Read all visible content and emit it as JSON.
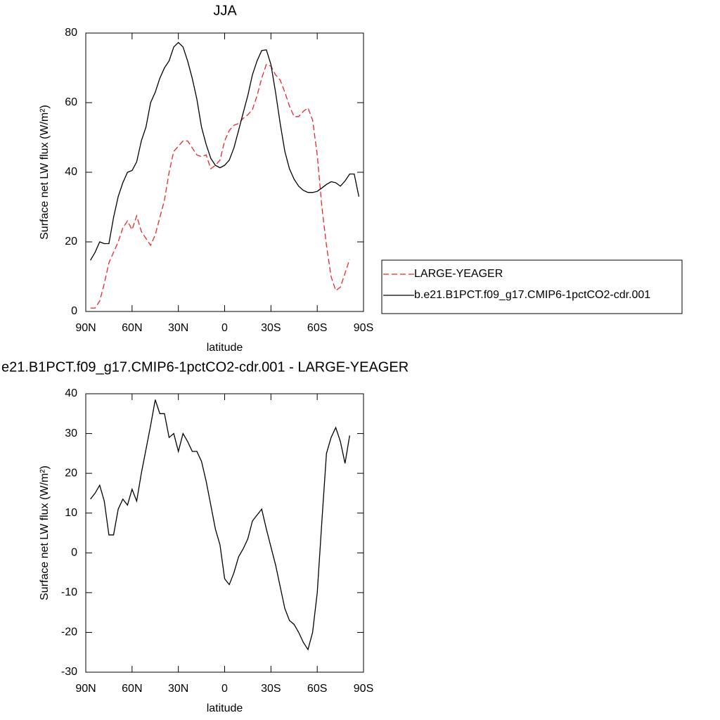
{
  "chart_data": [
    {
      "type": "line",
      "title": "JJA",
      "xlabel": "latitude",
      "ylabel": "Surface net LW flux (W/m²)",
      "x": [
        87,
        84,
        81,
        78,
        75,
        72,
        69,
        66,
        63,
        60,
        57,
        54,
        51,
        48,
        45,
        42,
        39,
        36,
        33,
        30,
        27,
        24,
        21,
        18,
        15,
        12,
        9,
        6,
        3,
        0,
        -3,
        -6,
        -9,
        -12,
        -15,
        -18,
        -21,
        -24,
        -27,
        -30,
        -33,
        -36,
        -39,
        -42,
        -45,
        -48,
        -51,
        -54,
        -57,
        -60,
        -63,
        -66,
        -69,
        -72,
        -75,
        -78,
        -81,
        -84,
        -87
      ],
      "series": [
        {
          "name": "LARGE-YEAGER",
          "color": "#e8262b",
          "dashed": true,
          "values": [
            1,
            1,
            3,
            8,
            14,
            17,
            20,
            24,
            26,
            23.5,
            27.5,
            23,
            21,
            19,
            22,
            27,
            32,
            40,
            46,
            47.5,
            49,
            49,
            47,
            45,
            44.5,
            45,
            41,
            42,
            43.5,
            49,
            52,
            53.5,
            54,
            55.5,
            56.5,
            58,
            62,
            67,
            71,
            70.5,
            68,
            66.5,
            63,
            59,
            56,
            56,
            57.5,
            58.5,
            55,
            45,
            30,
            19,
            10,
            6,
            7,
            11,
            15,
            null,
            null
          ]
        },
        {
          "name": "b.e21.B1PCT.f09_g17.CMIP6-1pctCO2-cdr.001",
          "color": "#000000",
          "dashed": false,
          "values": [
            14.7,
            17,
            20,
            19.5,
            19.5,
            27,
            33,
            37,
            40,
            40.5,
            43,
            49,
            53,
            60,
            63,
            67,
            70,
            72,
            76,
            77.3,
            76,
            72,
            67,
            61,
            53,
            48,
            44,
            42,
            41.3,
            42,
            43.5,
            47,
            52,
            57,
            62,
            68,
            72,
            75,
            75.2,
            71,
            63,
            54,
            46,
            41,
            38,
            36,
            34.8,
            34.2,
            34.2,
            34.5,
            35.5,
            36.5,
            37.3,
            37,
            36,
            37.5,
            39.5,
            39.5,
            33
          ]
        }
      ],
      "xlim": [
        90,
        -90
      ],
      "xticks": [
        {
          "value": 90,
          "label": "90N"
        },
        {
          "value": 60,
          "label": "60N"
        },
        {
          "value": 30,
          "label": "30N"
        },
        0,
        {
          "value": -30,
          "label": "30S"
        },
        {
          "value": -60,
          "label": "60S"
        },
        {
          "value": -90,
          "label": "90S"
        }
      ],
      "ylim": [
        0,
        80
      ],
      "yticks": [
        0,
        20,
        40,
        60,
        80
      ],
      "legend": "right"
    },
    {
      "type": "line",
      "title": "e21.B1PCT.f09_g17.CMIP6-1pctCO2-cdr.001 - LARGE-YEAGER",
      "xlabel": "latitude",
      "ylabel": "Surface net LW flux (W/m²)",
      "x": [
        87,
        84,
        81,
        78,
        75,
        72,
        69,
        66,
        63,
        60,
        57,
        54,
        51,
        48,
        45,
        42,
        39,
        36,
        33,
        30,
        27,
        24,
        21,
        18,
        15,
        12,
        9,
        6,
        3,
        0,
        -3,
        -6,
        -9,
        -12,
        -15,
        -18,
        -21,
        -24,
        -27,
        -30,
        -33,
        -36,
        -39,
        -42,
        -45,
        -48,
        -51,
        -54,
        -57,
        -60,
        -63,
        -66,
        -69,
        -72,
        -75,
        -78,
        -81,
        -84,
        -87
      ],
      "series": [
        {
          "color": "#000000",
          "dashed": false,
          "values": [
            13.5,
            15,
            17,
            13,
            4.5,
            4.5,
            11,
            13.5,
            12,
            16,
            13,
            20,
            26,
            32,
            38.5,
            35,
            35,
            29,
            30,
            25.5,
            30,
            28,
            25.5,
            25.5,
            23,
            18,
            12,
            6,
            2,
            -6.5,
            -8,
            -5,
            -1,
            1,
            3.5,
            8,
            9.5,
            11,
            6,
            1.5,
            -3,
            -8.5,
            -14,
            -17,
            -18,
            -20,
            -22.5,
            -24.3,
            -20,
            -10,
            8,
            25,
            29,
            31.5,
            28,
            22.5,
            29.5,
            null,
            null
          ]
        }
      ],
      "xlim": [
        90,
        -90
      ],
      "xticks": [
        {
          "value": 90,
          "label": "90N"
        },
        {
          "value": 60,
          "label": "60N"
        },
        {
          "value": 30,
          "label": "30N"
        },
        0,
        {
          "value": -30,
          "label": "30S"
        },
        {
          "value": -60,
          "label": "60S"
        },
        {
          "value": -90,
          "label": "90S"
        }
      ],
      "ylim": [
        -30,
        40
      ],
      "yticks": [
        -30,
        -20,
        -10,
        0,
        10,
        20,
        30,
        40
      ]
    }
  ]
}
